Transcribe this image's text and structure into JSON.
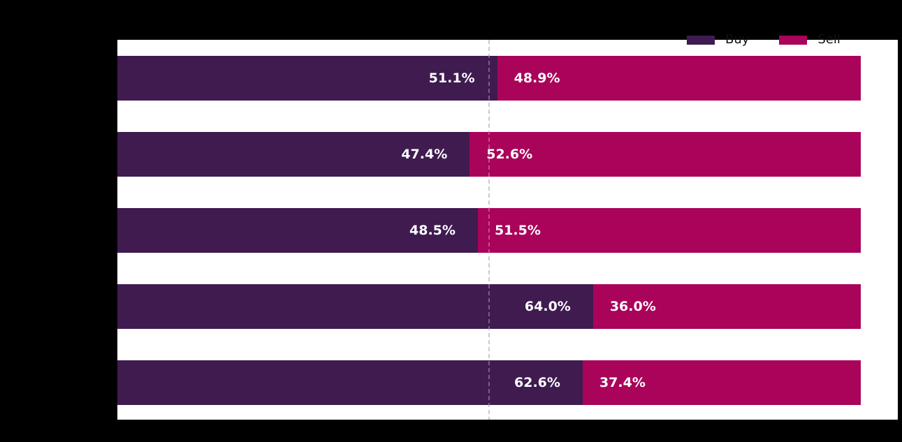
{
  "canvas": {
    "background_color": "#000000",
    "plot_background_color": "#ffffff"
  },
  "legend": {
    "position": "top-right",
    "entries": [
      {
        "label": "Buy",
        "color": "#3f1b50"
      },
      {
        "label": "Sell",
        "color": "#a9035a"
      }
    ]
  },
  "chart_data": {
    "type": "bar",
    "orientation": "horizontal_stacked",
    "categories": [
      "",
      "",
      "",
      "",
      ""
    ],
    "series": [
      {
        "name": "Buy",
        "color": "#3f1b50",
        "values": [
          51.1,
          47.4,
          48.5,
          64.0,
          62.6
        ]
      },
      {
        "name": "Sell",
        "color": "#a9035a",
        "values": [
          48.9,
          52.6,
          51.5,
          36.0,
          37.4
        ]
      }
    ],
    "bar_labels": {
      "buy": [
        "51.1%",
        "47.4%",
        "48.5%",
        "64.0%",
        "62.6%"
      ],
      "sell": [
        "48.9%",
        "52.6%",
        "51.5%",
        "36.0%",
        "37.4%"
      ]
    },
    "value_label_color": "#ffffff",
    "reference_line": {
      "x": 50,
      "color": "#b4b4b4",
      "style": "dashed"
    },
    "xlim": [
      0,
      105
    ],
    "grid": false,
    "legend_position": "top-right"
  }
}
